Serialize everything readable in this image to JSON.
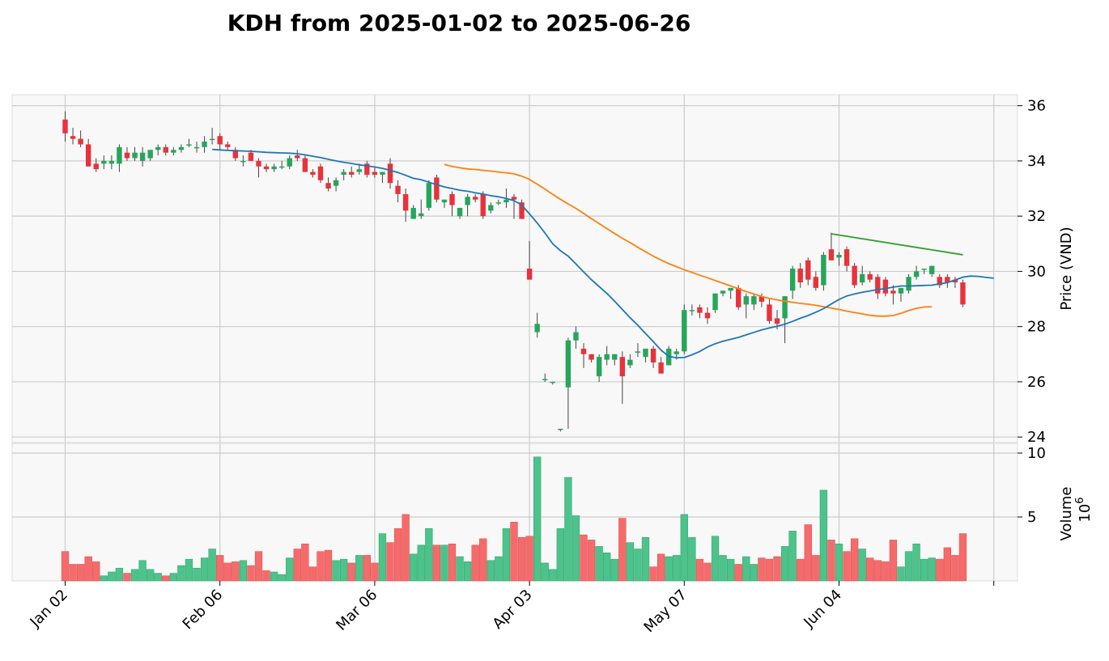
{
  "chart_data": {
    "type": "candlestick",
    "title": "KDH from 2025-01-02 to 2025-06-26",
    "ylabel": "Price (VND)",
    "volume_label": "Volume",
    "volume_exponent_label": "10",
    "volume_exponent": "6",
    "ylim": [
      23.8,
      36.4
    ],
    "volume_ylim": [
      0,
      10
    ],
    "y_ticks": [
      "24",
      "26",
      "28",
      "30",
      "32",
      "34",
      "36"
    ],
    "volume_ticks": [
      "5",
      "10"
    ],
    "x_tick_labels": [
      {
        "label": "Jan 02",
        "index": 0
      },
      {
        "label": "Feb 06",
        "index": 20
      },
      {
        "label": "Mar 06",
        "index": 40
      },
      {
        "label": "Apr 03",
        "index": 60
      },
      {
        "label": "May 07",
        "index": 80
      },
      {
        "label": "Jun 04",
        "index": 100
      },
      {
        "label": "",
        "index": 120
      }
    ],
    "colors": {
      "up": "#26a65b",
      "down": "#e8323c",
      "up_volume": "#4cc38a",
      "down_volume": "#f56b6b",
      "ma_short": "#1f77b4",
      "ma_long": "#ff7f0e",
      "trend": "#2ca02c"
    },
    "candles": [
      [
        35.5,
        35.8,
        34.7,
        35.0
      ],
      [
        34.9,
        35.2,
        34.6,
        34.8
      ],
      [
        34.8,
        35.1,
        34.5,
        34.6
      ],
      [
        34.6,
        34.8,
        33.8,
        33.8
      ],
      [
        33.9,
        34.1,
        33.6,
        33.7
      ],
      [
        33.9,
        34.2,
        33.7,
        34.0
      ],
      [
        33.9,
        34.2,
        33.7,
        34.0
      ],
      [
        33.9,
        34.6,
        33.6,
        34.5
      ],
      [
        34.3,
        34.5,
        34.0,
        34.1
      ],
      [
        34.1,
        34.5,
        34.0,
        34.3
      ],
      [
        34.0,
        34.5,
        33.8,
        34.3
      ],
      [
        34.1,
        34.4,
        34.0,
        34.4
      ],
      [
        34.4,
        34.6,
        34.2,
        34.5
      ],
      [
        34.5,
        34.6,
        34.2,
        34.3
      ],
      [
        34.3,
        34.5,
        34.2,
        34.4
      ],
      [
        34.4,
        34.6,
        34.3,
        34.5
      ],
      [
        34.6,
        34.8,
        34.5,
        34.6
      ],
      [
        34.5,
        34.7,
        34.3,
        34.5
      ],
      [
        34.5,
        34.9,
        34.3,
        34.7
      ],
      [
        34.8,
        35.2,
        34.6,
        34.8
      ],
      [
        34.9,
        35.0,
        34.4,
        34.6
      ],
      [
        34.6,
        34.7,
        34.4,
        34.5
      ],
      [
        34.4,
        34.5,
        34.0,
        34.1
      ],
      [
        34.0,
        34.2,
        33.8,
        34.0
      ],
      [
        34.3,
        34.4,
        34.0,
        34.0
      ],
      [
        34.0,
        34.1,
        33.4,
        33.8
      ],
      [
        33.8,
        33.9,
        33.6,
        33.7
      ],
      [
        33.7,
        33.9,
        33.6,
        33.8
      ],
      [
        33.8,
        34.0,
        33.7,
        33.8
      ],
      [
        33.8,
        34.2,
        33.7,
        34.1
      ],
      [
        34.2,
        34.4,
        34.0,
        34.1
      ],
      [
        34.1,
        34.2,
        33.6,
        33.6
      ],
      [
        33.6,
        33.7,
        33.4,
        33.5
      ],
      [
        33.8,
        33.9,
        33.2,
        33.3
      ],
      [
        33.2,
        33.4,
        32.9,
        33.0
      ],
      [
        33.1,
        33.4,
        32.9,
        33.3
      ],
      [
        33.5,
        33.7,
        33.3,
        33.6
      ],
      [
        33.6,
        33.8,
        33.4,
        33.5
      ],
      [
        33.6,
        33.9,
        33.5,
        33.7
      ],
      [
        33.9,
        34.0,
        33.4,
        33.5
      ],
      [
        33.6,
        33.8,
        33.4,
        33.5
      ],
      [
        33.5,
        33.6,
        33.2,
        33.6
      ],
      [
        33.9,
        34.1,
        33.0,
        33.2
      ],
      [
        33.1,
        33.3,
        32.5,
        32.8
      ],
      [
        32.8,
        33.0,
        31.8,
        32.2
      ],
      [
        31.9,
        32.4,
        31.9,
        32.3
      ],
      [
        32.0,
        32.6,
        31.9,
        32.1
      ],
      [
        32.3,
        33.3,
        32.2,
        33.2
      ],
      [
        33.4,
        33.5,
        32.5,
        32.6
      ],
      [
        32.5,
        32.6,
        32.3,
        32.6
      ],
      [
        32.8,
        32.9,
        32.0,
        32.4
      ],
      [
        32.0,
        32.3,
        31.9,
        32.3
      ],
      [
        32.4,
        32.8,
        32.0,
        32.7
      ],
      [
        32.7,
        32.8,
        32.5,
        32.6
      ],
      [
        32.8,
        32.9,
        31.9,
        32.0
      ],
      [
        32.2,
        32.5,
        32.1,
        32.4
      ],
      [
        32.5,
        32.6,
        32.4,
        32.5
      ],
      [
        32.5,
        33.0,
        32.3,
        32.6
      ],
      [
        32.7,
        32.8,
        31.9,
        32.6
      ],
      [
        32.5,
        32.6,
        31.9,
        31.9
      ],
      [
        30.1,
        31.1,
        29.7,
        29.7
      ],
      [
        27.8,
        28.5,
        27.6,
        28.1
      ],
      [
        26.1,
        26.3,
        26.0,
        26.1
      ],
      [
        26.0,
        26.0,
        25.9,
        26.0
      ],
      [
        24.3,
        24.3,
        24.2,
        24.3
      ],
      [
        25.8,
        27.6,
        24.3,
        27.5
      ],
      [
        27.5,
        28.0,
        27.2,
        27.8
      ],
      [
        27.2,
        27.4,
        26.5,
        27.0
      ],
      [
        27.0,
        27.0,
        26.7,
        26.8
      ],
      [
        26.2,
        27.0,
        26.0,
        26.9
      ],
      [
        26.8,
        27.3,
        26.6,
        27.0
      ],
      [
        26.8,
        27.0,
        26.6,
        27.0
      ],
      [
        26.9,
        27.1,
        25.2,
        26.2
      ],
      [
        26.6,
        27.0,
        26.5,
        26.8
      ],
      [
        27.1,
        27.4,
        26.9,
        27.1
      ],
      [
        26.9,
        27.2,
        26.7,
        27.2
      ],
      [
        27.2,
        27.3,
        26.5,
        26.7
      ],
      [
        26.7,
        26.9,
        26.3,
        26.3
      ],
      [
        26.6,
        27.3,
        26.6,
        27.2
      ],
      [
        27.0,
        27.2,
        26.8,
        27.1
      ],
      [
        27.1,
        28.8,
        27.0,
        28.6
      ],
      [
        28.6,
        28.8,
        28.4,
        28.6
      ],
      [
        28.7,
        28.8,
        28.3,
        28.5
      ],
      [
        28.5,
        28.7,
        28.1,
        28.3
      ],
      [
        28.6,
        29.2,
        28.5,
        29.2
      ],
      [
        29.2,
        29.3,
        29.1,
        29.3
      ],
      [
        29.3,
        29.4,
        29.0,
        29.4
      ],
      [
        29.4,
        29.5,
        28.6,
        28.7
      ],
      [
        28.8,
        29.2,
        28.3,
        29.1
      ],
      [
        28.8,
        29.2,
        28.6,
        29.1
      ],
      [
        29.1,
        29.2,
        28.7,
        28.9
      ],
      [
        28.8,
        29.0,
        28.1,
        28.2
      ],
      [
        28.3,
        28.6,
        27.9,
        28.1
      ],
      [
        28.3,
        29.1,
        27.4,
        29.1
      ],
      [
        29.3,
        30.2,
        29.0,
        30.1
      ],
      [
        30.1,
        30.3,
        29.4,
        29.6
      ],
      [
        30.4,
        30.5,
        29.5,
        29.7
      ],
      [
        29.8,
        30.0,
        29.3,
        29.4
      ],
      [
        29.5,
        30.7,
        29.3,
        30.6
      ],
      [
        30.8,
        31.4,
        30.4,
        30.4
      ],
      [
        30.5,
        30.7,
        30.2,
        30.6
      ],
      [
        30.8,
        30.9,
        30.0,
        30.2
      ],
      [
        30.2,
        30.3,
        29.4,
        29.5
      ],
      [
        29.6,
        30.2,
        29.5,
        29.9
      ],
      [
        29.9,
        30.0,
        29.6,
        29.7
      ],
      [
        29.8,
        29.9,
        29.0,
        29.2
      ],
      [
        29.7,
        29.8,
        29.1,
        29.2
      ],
      [
        29.3,
        29.5,
        28.8,
        29.2
      ],
      [
        29.2,
        29.4,
        28.9,
        29.4
      ],
      [
        29.3,
        29.9,
        29.2,
        29.8
      ],
      [
        29.8,
        30.2,
        29.7,
        30.0
      ],
      [
        30.1,
        30.1,
        29.9,
        30.1
      ],
      [
        29.9,
        30.2,
        29.8,
        30.2
      ],
      [
        29.8,
        29.9,
        29.4,
        29.5
      ],
      [
        29.8,
        29.9,
        29.4,
        29.6
      ],
      [
        29.7,
        29.8,
        29.4,
        29.6
      ],
      [
        29.6,
        29.7,
        28.7,
        28.8
      ]
    ],
    "volume": [
      2.3,
      1.3,
      1.3,
      1.9,
      1.5,
      0.4,
      0.7,
      1.0,
      0.6,
      0.9,
      1.6,
      0.9,
      0.6,
      0.4,
      0.6,
      1.2,
      1.7,
      1.0,
      1.8,
      2.5,
      2.0,
      1.4,
      1.5,
      1.6,
      1.2,
      2.3,
      0.8,
      0.7,
      0.5,
      1.8,
      2.5,
      2.9,
      1.1,
      2.3,
      2.4,
      1.6,
      1.7,
      1.4,
      2.0,
      2.0,
      1.4,
      3.7,
      3.0,
      4.1,
      5.2,
      2.1,
      2.8,
      4.1,
      2.8,
      2.8,
      2.9,
      1.9,
      1.5,
      2.8,
      3.3,
      1.6,
      1.9,
      4.1,
      4.6,
      3.4,
      3.5,
      9.7,
      1.4,
      0.9,
      4.1,
      8.1,
      5.1,
      3.6,
      3.2,
      2.7,
      2.2,
      1.7,
      4.9,
      3.0,
      2.5,
      3.4,
      1.1,
      2.1,
      1.9,
      2.0,
      5.2,
      3.4,
      1.7,
      1.4,
      3.5,
      2.0,
      1.7,
      1.3,
      1.9,
      1.3,
      1.8,
      1.7,
      1.9,
      2.7,
      3.9,
      1.7,
      4.4,
      2.0,
      7.1,
      3.2,
      2.9,
      2.3,
      3.3,
      2.5,
      1.8,
      1.6,
      1.5,
      3.2,
      1.1,
      2.3,
      2.9,
      1.7,
      1.8,
      1.7,
      2.6,
      2.0,
      3.7
    ],
    "ma_short": {
      "name": "",
      "start_index": 19,
      "values": [
        34.42,
        34.4,
        34.38,
        34.37,
        34.36,
        34.35,
        34.33,
        34.31,
        34.3,
        34.29,
        34.28,
        34.26,
        34.22,
        34.17,
        34.12,
        34.06,
        34.0,
        33.95,
        33.91,
        33.86,
        33.82,
        33.78,
        33.73,
        33.66,
        33.58,
        33.48,
        33.37,
        33.32,
        33.23,
        33.14,
        33.06,
        33.0,
        32.94,
        32.9,
        32.85,
        32.8,
        32.74,
        32.7,
        32.64,
        32.56,
        32.4,
        32.08,
        31.75,
        31.39,
        31.0,
        30.75,
        30.55,
        30.27,
        29.98,
        29.7,
        29.45,
        29.2,
        28.92,
        28.62,
        28.32,
        28.05,
        27.75,
        27.45,
        27.15,
        26.92,
        26.87,
        26.88,
        26.98,
        27.1,
        27.26,
        27.38,
        27.47,
        27.54,
        27.61,
        27.7,
        27.79,
        27.88,
        27.95,
        28.01,
        28.09,
        28.19,
        28.3,
        28.4,
        28.52,
        28.65,
        28.82,
        28.98,
        29.11,
        29.18,
        29.24,
        29.29,
        29.34,
        29.38,
        29.43,
        29.47,
        29.47,
        29.48,
        29.49,
        29.5,
        29.55,
        29.59,
        29.69,
        29.79,
        29.83,
        29.82,
        29.78,
        29.75
      ]
    },
    "ma_long": {
      "name": "",
      "start_index": 49,
      "values": [
        33.87,
        33.8,
        33.75,
        33.71,
        33.69,
        33.66,
        33.63,
        33.6,
        33.57,
        33.53,
        33.45,
        33.33,
        33.16,
        32.98,
        32.79,
        32.61,
        32.44,
        32.28,
        32.1,
        31.91,
        31.73,
        31.55,
        31.37,
        31.2,
        31.04,
        30.87,
        30.71,
        30.55,
        30.41,
        30.28,
        30.17,
        30.06,
        29.96,
        29.86,
        29.77,
        29.67,
        29.57,
        29.47,
        29.37,
        29.27,
        29.18,
        29.09,
        29.02,
        28.97,
        28.92,
        28.88,
        28.84,
        28.81,
        28.77,
        28.72,
        28.67,
        28.62,
        28.56,
        28.51,
        28.46,
        28.41,
        28.38,
        28.38,
        28.4,
        28.48,
        28.58,
        28.66,
        28.71,
        28.72
      ]
    },
    "trend_line": {
      "start_index": 99,
      "end_index": 116,
      "start": 31.36,
      "end": 30.6
    }
  }
}
